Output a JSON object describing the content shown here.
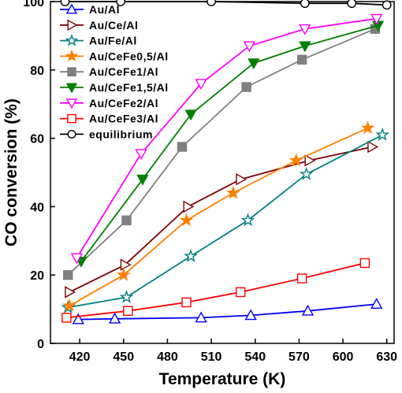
{
  "chart_data": {
    "type": "line",
    "xlabel": "Temperature (K)",
    "ylabel": "CO conversion (%)",
    "xlim": [
      400,
      635
    ],
    "ylim": [
      0,
      100
    ],
    "xticks": [
      420,
      450,
      480,
      510,
      540,
      570,
      600,
      630
    ],
    "yticks": [
      0,
      20,
      40,
      60,
      80,
      100
    ],
    "legend_position": "top-left",
    "series": [
      {
        "name": "Au/Al",
        "color": "#0000ff",
        "marker": "triangle-up",
        "fill": "none",
        "x": [
          419,
          444,
          503,
          537,
          576,
          623
        ],
        "y": [
          7,
          7.2,
          7.5,
          8.2,
          9.5,
          11.5
        ]
      },
      {
        "name": "Au/Ce/Al",
        "color": "#800000",
        "marker": "triangle-right",
        "fill": "none",
        "x": [
          413,
          451,
          494,
          530,
          577,
          620
        ],
        "y": [
          15,
          23,
          40,
          48,
          53.5,
          57.5
        ]
      },
      {
        "name": "Au/Fe/Al",
        "color": "#008080",
        "marker": "star",
        "fill": "none",
        "x": [
          412,
          452,
          496,
          535,
          575,
          627
        ],
        "y": [
          10.5,
          13.5,
          25.5,
          36,
          49.5,
          61
        ]
      },
      {
        "name": "Au/CeFe0,5/Al",
        "color": "#ff8000",
        "marker": "star",
        "fill": "solid",
        "x": [
          413,
          450,
          493,
          525,
          568,
          617
        ],
        "y": [
          11,
          20,
          36,
          44,
          53.5,
          63
        ]
      },
      {
        "name": "Au/CeFe1/Al",
        "color": "#808080",
        "marker": "square",
        "fill": "solid",
        "x": [
          412,
          452,
          490,
          534,
          572,
          622
        ],
        "y": [
          20,
          36,
          57.5,
          75,
          83,
          92
        ]
      },
      {
        "name": "Au/CeFe1,5/Al",
        "color": "#008000",
        "marker": "triangle-down",
        "fill": "solid",
        "x": [
          421,
          463,
          496,
          539,
          574,
          624
        ],
        "y": [
          24,
          48,
          67,
          82,
          87,
          93
        ]
      },
      {
        "name": "Au/CeFe2/Al",
        "color": "#ff00ff",
        "marker": "triangle-down",
        "fill": "none",
        "x": [
          418,
          462,
          503,
          536,
          574,
          623
        ],
        "y": [
          25,
          55.5,
          76,
          87,
          92,
          95
        ]
      },
      {
        "name": "Au/CeFe3/Al",
        "color": "#ff0000",
        "marker": "square",
        "fill": "none",
        "x": [
          411,
          453,
          493,
          530,
          572,
          615
        ],
        "y": [
          7.5,
          9.5,
          12,
          15,
          19,
          23.5
        ]
      },
      {
        "name": "equilibrium",
        "color": "#000000",
        "marker": "circle",
        "fill": "none",
        "x": [
          410,
          448,
          510,
          574,
          606,
          630
        ],
        "y": [
          100,
          100,
          100,
          99.5,
          99.5,
          99
        ]
      }
    ]
  }
}
